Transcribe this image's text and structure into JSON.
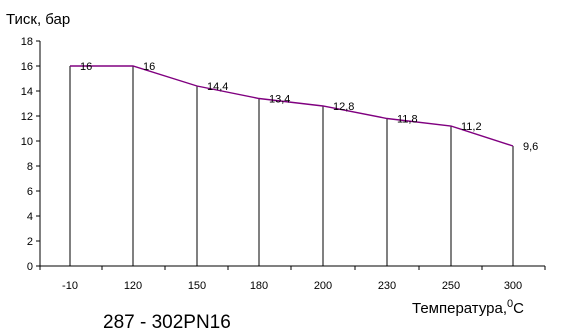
{
  "chart_data": {
    "type": "line",
    "ylabel": "Тиск, бар",
    "xlabel_prefix": "Температура,",
    "xlabel_unit_sup": "0",
    "xlabel_unit": "С",
    "categories": [
      "-10",
      "120",
      "150",
      "180",
      "200",
      "230",
      "250",
      "300"
    ],
    "series": [
      {
        "values": [
          16,
          16,
          14.4,
          13.4,
          12.8,
          11.8,
          11.2,
          9.6
        ],
        "labels": [
          "16",
          "16",
          "14,4",
          "13,4",
          "12,8",
          "11,8",
          "11,2",
          "9,6"
        ]
      }
    ],
    "ylim": [
      0,
      18
    ],
    "yticks": [
      "0",
      "2",
      "4",
      "6",
      "8",
      "10",
      "12",
      "14",
      "16",
      "18"
    ],
    "grid": false,
    "drop_lines": true,
    "line_color": "#800080"
  },
  "caption": "287 - 302PN16"
}
